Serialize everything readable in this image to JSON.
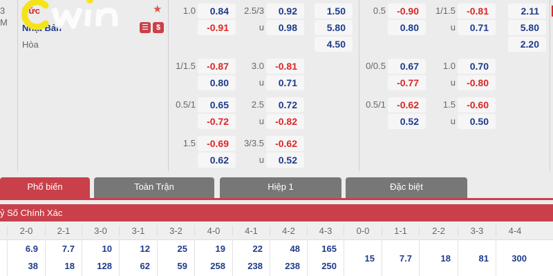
{
  "match": {
    "time_frag": "3",
    "time_frag2": "M",
    "home": "Đức",
    "away": "Nhật Bản",
    "draw": "Hòa",
    "logo": "cwin",
    "colors": {
      "blue": "#1e3a8a",
      "red": "#dc2626",
      "accent": "#c9404a"
    }
  },
  "ft": [
    {
      "hdp": "1.0",
      "h1": "0.84",
      "h2": "-0.91",
      "ou": "2.5/3",
      "o1": "0.92",
      "o2": "0.98",
      "x": [
        "1.50",
        "5.80",
        "4.50"
      ]
    },
    {
      "hdp": "1/1.5",
      "h1": "-0.87",
      "h2": "0.80",
      "ou": "3.0",
      "o1": "-0.81",
      "o2": "0.71"
    },
    {
      "hdp": "0.5/1",
      "h1": "0.65",
      "h2": "-0.72",
      "ou": "2.5",
      "o1": "0.72",
      "o2": "-0.82"
    },
    {
      "hdp": "1.5",
      "h1": "-0.69",
      "h2": "0.62",
      "ou": "3/3.5",
      "o1": "-0.62",
      "o2": "0.52"
    }
  ],
  "h1": [
    {
      "hdp": "0.5",
      "h1": "-0.90",
      "h2": "0.80",
      "ou": "1/1.5",
      "o1": "-0.81",
      "o2": "0.71",
      "x": [
        "2.11",
        "5.80",
        "2.20"
      ]
    },
    {
      "hdp": "0/0.5",
      "h1": "0.67",
      "h2": "-0.77",
      "ou": "1.0",
      "o1": "0.70",
      "o2": "-0.80"
    },
    {
      "hdp": "0.5/1",
      "h1": "-0.62",
      "h2": "0.52",
      "ou": "1.5",
      "o1": "-0.60",
      "o2": "0.50"
    }
  ],
  "under_label": "u",
  "tabs": [
    "Phổ biến",
    "Toàn Trận",
    "Hiệp 1",
    "Đặc biệt"
  ],
  "section_title": "ỷ Số Chính Xác",
  "scores": [
    {
      "s": "2-0",
      "a": "6.9",
      "b": "38"
    },
    {
      "s": "2-1",
      "a": "7.7",
      "b": "18"
    },
    {
      "s": "3-0",
      "a": "10",
      "b": "128"
    },
    {
      "s": "3-1",
      "a": "12",
      "b": "62"
    },
    {
      "s": "3-2",
      "a": "25",
      "b": "59"
    },
    {
      "s": "4-0",
      "a": "19",
      "b": "258"
    },
    {
      "s": "4-1",
      "a": "22",
      "b": "238"
    },
    {
      "s": "4-2",
      "a": "48",
      "b": "238"
    },
    {
      "s": "4-3",
      "a": "165",
      "b": "250"
    },
    {
      "s": "0-0",
      "a": "15"
    },
    {
      "s": "1-1",
      "a": "7.7"
    },
    {
      "s": "2-2",
      "a": "18"
    },
    {
      "s": "3-3",
      "a": "81"
    },
    {
      "s": "4-4",
      "a": "300"
    }
  ]
}
